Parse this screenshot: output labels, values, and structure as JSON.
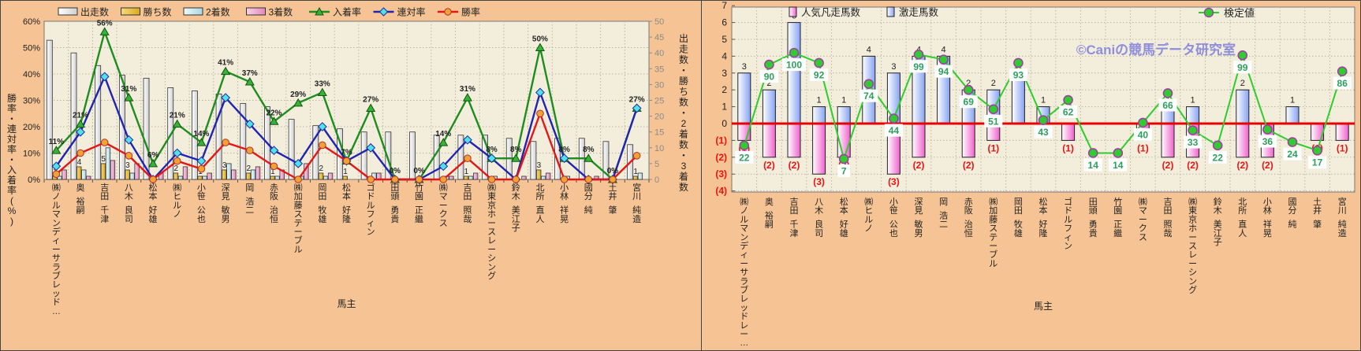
{
  "x_axis_title": "馬主",
  "watermark": "©Caniの競馬データ研究室",
  "colors": {
    "panel_bg": "#F6C494",
    "plot_bg": "#F3EEDC",
    "grid": "#BDB49C",
    "axis_text": "#222222",
    "right_axis_text": "#8A8A8A",
    "negative_text": "#EE1111",
    "zero_line": "#E80000",
    "bar_runs": "#E9E9E9",
    "bar_wins": "#DCA918",
    "bar_second": "#C4E6F0",
    "bar_third": "#EE9EC8",
    "line_nyuchaku": "#1E8C1E",
    "line_rentai": "#2024B0",
    "line_shoritsu": "#E51616",
    "marker_triangle": "#36B336",
    "marker_diamond": "#52E0EA",
    "marker_circle": "#F0A232",
    "bar_gekiso": "#86A2F2",
    "bar_bonso": "#F060CC",
    "line_kentei": "#2ECC2E",
    "kentei_marker_edge": "#A040A0",
    "label_green": "#2E9E5C",
    "watermark": "#8E8EDC",
    "border": "#444444"
  },
  "chart_data": [
    {
      "type": "bar",
      "title": "",
      "xlabel": "馬主",
      "ylabel_left": "勝率・連対率・入着率(%)",
      "ylabel_right": "出走数・勝ち数・2着数・3着数",
      "ylim_left": [
        0,
        60
      ],
      "ytick_step_left": 10,
      "ylim_right": [
        0,
        50
      ],
      "ytick_step_right": 5,
      "grid": true,
      "legend_position": "top",
      "legend": [
        "出走数",
        "勝ち数",
        "2着数",
        "3着数",
        "入着率",
        "連対率",
        "勝率"
      ],
      "categories": [
        "㈱ノルマンディーサラブレッド…",
        "奥 裕嗣",
        "吉田 千津",
        "八木 良司",
        "松本 好雄",
        "㈱ヒルノ",
        "小笹 公也",
        "深見 敏男",
        "岡 浩二",
        "赤阪 治恒",
        "㈱加藤ステーブル",
        "岡田 牧雄",
        "松本 好隆",
        "ゴドルフィン",
        "田頭 勇貴",
        "竹園 正繼",
        "㈱マークス",
        "吉田 照哉",
        "㈱東京ホースレーシング",
        "鈴木 美江子",
        "北所 直人",
        "小林 祥晃",
        "國分 純",
        "土井 肇",
        "宮川 純造"
      ],
      "series": [
        {
          "name": "出走数",
          "type": "bar",
          "axis": "right",
          "values": [
            44,
            40,
            36,
            33,
            32,
            29,
            28,
            27,
            24,
            23,
            19,
            17,
            16,
            15,
            15,
            15,
            14,
            14,
            14,
            13,
            12,
            13,
            13,
            12,
            11
          ]
        },
        {
          "name": "勝ち数",
          "type": "bar",
          "axis": "right",
          "labeled": true,
          "values": [
            1,
            4,
            5,
            3,
            0,
            2,
            1,
            3,
            2,
            1,
            0,
            2,
            1,
            0,
            0,
            0,
            0,
            1,
            0,
            0,
            3,
            0,
            0,
            0,
            1
          ]
        },
        {
          "name": "2着数",
          "type": "bar",
          "axis": "right",
          "values": [
            1,
            3,
            10,
            2,
            0,
            1,
            1,
            5,
            3,
            1,
            1,
            1,
            0,
            2,
            0,
            0,
            1,
            1,
            1,
            0,
            1,
            1,
            0,
            0,
            2
          ]
        },
        {
          "name": "3着数",
          "type": "bar",
          "axis": "right",
          "values": [
            3,
            1,
            6,
            5,
            2,
            4,
            2,
            3,
            4,
            3,
            5,
            2,
            0,
            2,
            0,
            0,
            1,
            2,
            0,
            1,
            2,
            0,
            1,
            0,
            0
          ]
        },
        {
          "name": "入着率",
          "type": "line",
          "axis": "left",
          "marker": "triangle",
          "labeled": true,
          "label_suffix": "%",
          "values": [
            11,
            21,
            56,
            31,
            6,
            21,
            14,
            41,
            37,
            22,
            29,
            33,
            7,
            27,
            0,
            0,
            14,
            31,
            8,
            8,
            50,
            8,
            8,
            0,
            27
          ]
        },
        {
          "name": "連対率",
          "type": "line",
          "axis": "left",
          "marker": "diamond",
          "values": [
            5,
            18,
            39,
            15,
            0,
            10,
            7,
            31,
            21,
            11,
            6,
            20,
            7,
            12,
            0,
            0,
            5,
            15,
            8,
            0,
            33,
            8,
            0,
            0,
            27
          ]
        },
        {
          "name": "勝率",
          "type": "line",
          "axis": "left",
          "marker": "circle",
          "values": [
            2,
            10,
            14,
            9,
            0,
            7,
            4,
            14,
            11,
            5,
            0,
            13,
            7,
            0,
            0,
            0,
            0,
            8,
            0,
            0,
            25,
            0,
            0,
            0,
            9
          ]
        }
      ]
    },
    {
      "type": "bar",
      "title": "",
      "xlabel": "馬主",
      "ylim": [
        -4,
        7
      ],
      "ytick_step": 1,
      "negative_tick_format": "parentheses",
      "grid": true,
      "legend": [
        "人気凡走馬数",
        "激走馬数",
        "検定値"
      ],
      "watermark": "©Caniの競馬データ研究室",
      "categories": [
        "㈱ノルマンディーサラブレッドレー…",
        "奥 裕嗣",
        "吉田 千津",
        "八木 良司",
        "松本 好雄",
        "㈱ヒルノ",
        "小笹 公也",
        "深見 敏男",
        "岡 浩二",
        "赤阪 治恒",
        "㈱加藤ステーブル",
        "岡田 牧雄",
        "松本 好隆",
        "ゴドルフィン",
        "田頭 勇貴",
        "竹園 正繼",
        "㈱マークス",
        "吉田 照哉",
        "㈱東京ホースレーシング",
        "鈴木 美江子",
        "北所 直人",
        "小林 祥晃",
        "國分 純",
        "土井 肇",
        "宮川 純造"
      ],
      "series": [
        {
          "name": "激走馬数",
          "type": "bar",
          "direction": "up",
          "labeled": true,
          "values": [
            3,
            2,
            6,
            1,
            1,
            4,
            3,
            4,
            4,
            2,
            2,
            3,
            1,
            0,
            0,
            0,
            0,
            1,
            1,
            0,
            2,
            0,
            1,
            0,
            0
          ]
        },
        {
          "name": "人気凡走馬数",
          "type": "bar",
          "direction": "down",
          "labeled": true,
          "values": [
            1,
            2,
            2,
            3,
            2,
            0,
            3,
            2,
            0,
            2,
            1,
            0,
            0,
            1,
            0,
            0,
            1,
            2,
            2,
            0,
            2,
            2,
            0,
            1,
            1
          ]
        },
        {
          "name": "検定値",
          "type": "line",
          "marker": "circle",
          "labeled": true,
          "values": [
            22,
            90,
            100,
            92,
            7,
            74,
            44,
            99,
            94,
            69,
            51,
            93,
            43,
            62,
            14,
            14,
            40,
            66,
            33,
            22,
            99,
            36,
            24,
            17,
            86
          ],
          "marker_y": [
            -1.3,
            3.5,
            4.2,
            3.6,
            -2.1,
            2.35,
            0.3,
            4.1,
            3.8,
            2.0,
            0.85,
            3.6,
            0.2,
            1.4,
            -1.75,
            -1.75,
            0.05,
            1.8,
            -0.4,
            -1.3,
            4.05,
            -0.35,
            -1.1,
            -1.6,
            3.1
          ]
        }
      ]
    }
  ]
}
